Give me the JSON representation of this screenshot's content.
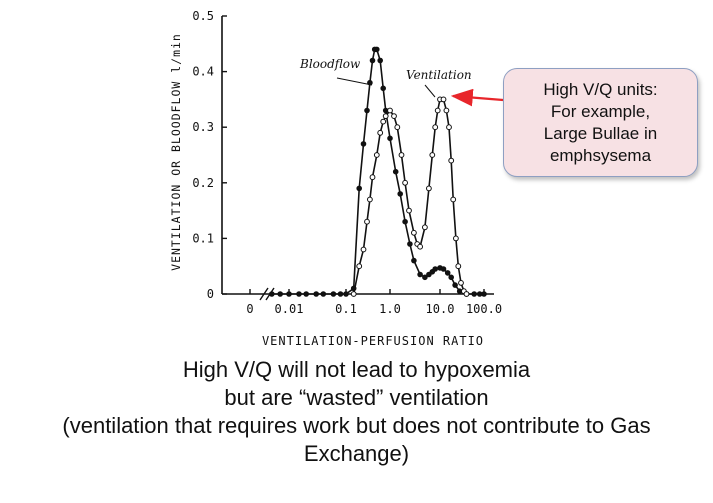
{
  "chart_data": {
    "type": "line",
    "ylabel": "VENTILATION OR BLOODFLOW l/min",
    "xlabel": "VENTILATION-PERFUSION RATIO",
    "ylim": [
      0,
      0.5
    ],
    "yticks": [
      "0",
      "0.1",
      "0.2",
      "0.3",
      "0.4",
      "0.5"
    ],
    "xtick_labels": [
      "0",
      "0.01",
      "0.1",
      "1.0",
      "10.0",
      "100.0"
    ],
    "x_scale": "log",
    "axis_break": "//",
    "series": [
      {
        "name": "Bloodflow",
        "marker": "filled",
        "points": [
          [
            0.005,
            0
          ],
          [
            0.007,
            0
          ],
          [
            0.01,
            0
          ],
          [
            0.015,
            0
          ],
          [
            0.02,
            0
          ],
          [
            0.03,
            0
          ],
          [
            0.04,
            0
          ],
          [
            0.06,
            0
          ],
          [
            0.08,
            0
          ],
          [
            0.1,
            0
          ],
          [
            0.15,
            0.01
          ],
          [
            0.2,
            0.19
          ],
          [
            0.25,
            0.27
          ],
          [
            0.3,
            0.33
          ],
          [
            0.35,
            0.38
          ],
          [
            0.4,
            0.42
          ],
          [
            0.45,
            0.44
          ],
          [
            0.5,
            0.44
          ],
          [
            0.6,
            0.42
          ],
          [
            0.7,
            0.37
          ],
          [
            0.8,
            0.33
          ],
          [
            1.0,
            0.28
          ],
          [
            1.3,
            0.22
          ],
          [
            1.6,
            0.18
          ],
          [
            2.0,
            0.13
          ],
          [
            2.5,
            0.09
          ],
          [
            3.0,
            0.06
          ],
          [
            4.0,
            0.035
          ],
          [
            5.0,
            0.03
          ],
          [
            6.0,
            0.035
          ],
          [
            7.0,
            0.04
          ],
          [
            8.0,
            0.045
          ],
          [
            10,
            0.047
          ],
          [
            12,
            0.045
          ],
          [
            15,
            0.038
          ],
          [
            18,
            0.03
          ],
          [
            22,
            0.016
          ],
          [
            28,
            0.005
          ],
          [
            40,
            0
          ],
          [
            60,
            0
          ],
          [
            80,
            0
          ],
          [
            100,
            0
          ]
        ]
      },
      {
        "name": "Ventilation",
        "marker": "open",
        "points": [
          [
            0.15,
            0
          ],
          [
            0.2,
            0.05
          ],
          [
            0.25,
            0.08
          ],
          [
            0.3,
            0.13
          ],
          [
            0.35,
            0.17
          ],
          [
            0.4,
            0.21
          ],
          [
            0.5,
            0.25
          ],
          [
            0.6,
            0.29
          ],
          [
            0.7,
            0.31
          ],
          [
            0.8,
            0.32
          ],
          [
            1.0,
            0.33
          ],
          [
            1.2,
            0.32
          ],
          [
            1.4,
            0.3
          ],
          [
            1.7,
            0.25
          ],
          [
            2.0,
            0.2
          ],
          [
            2.4,
            0.15
          ],
          [
            3.0,
            0.11
          ],
          [
            3.5,
            0.09
          ],
          [
            4.0,
            0.085
          ],
          [
            5.0,
            0.12
          ],
          [
            6.0,
            0.19
          ],
          [
            7.0,
            0.25
          ],
          [
            8.0,
            0.3
          ],
          [
            9.0,
            0.33
          ],
          [
            10,
            0.35
          ],
          [
            12,
            0.35
          ],
          [
            14,
            0.33
          ],
          [
            16,
            0.3
          ],
          [
            18,
            0.24
          ],
          [
            20,
            0.17
          ],
          [
            23,
            0.1
          ],
          [
            26,
            0.05
          ],
          [
            30,
            0.02
          ],
          [
            35,
            0.005
          ],
          [
            40,
            0
          ]
        ]
      }
    ]
  },
  "callout": {
    "lines": [
      "High V/Q units:",
      "For example,",
      "Large Bullae in",
      "emphsysema"
    ],
    "arrow_color": "#e8262b"
  },
  "caption": {
    "lines": [
      "High V/Q will not lead to hypoxemia",
      "but are “wasted” ventilation",
      "(ventilation that requires work but does not contribute to Gas",
      "Exchange)"
    ]
  }
}
